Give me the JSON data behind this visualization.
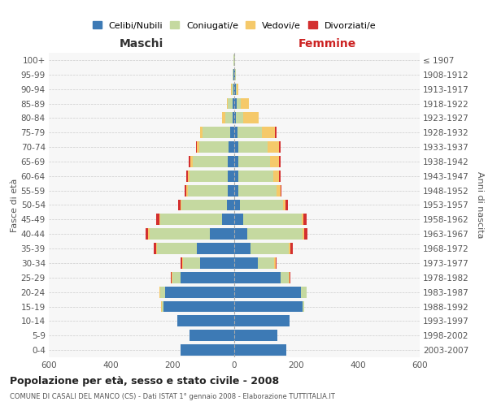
{
  "age_groups": [
    "0-4",
    "5-9",
    "10-14",
    "15-19",
    "20-24",
    "25-29",
    "30-34",
    "35-39",
    "40-44",
    "45-49",
    "50-54",
    "55-59",
    "60-64",
    "65-69",
    "70-74",
    "75-79",
    "80-84",
    "85-89",
    "90-94",
    "95-99",
    "100+"
  ],
  "birth_years": [
    "2003-2007",
    "1998-2002",
    "1993-1997",
    "1988-1992",
    "1983-1987",
    "1978-1982",
    "1973-1977",
    "1968-1972",
    "1963-1967",
    "1958-1962",
    "1953-1957",
    "1948-1952",
    "1943-1947",
    "1938-1942",
    "1933-1937",
    "1928-1932",
    "1923-1927",
    "1918-1922",
    "1913-1917",
    "1908-1912",
    "≤ 1907"
  ],
  "maschi": {
    "celibi": [
      175,
      145,
      185,
      230,
      225,
      175,
      110,
      120,
      80,
      40,
      25,
      20,
      20,
      20,
      18,
      12,
      5,
      5,
      3,
      2,
      1
    ],
    "coniugati": [
      0,
      0,
      0,
      5,
      15,
      25,
      55,
      130,
      195,
      200,
      145,
      130,
      125,
      115,
      95,
      90,
      25,
      15,
      5,
      2,
      1
    ],
    "vedovi": [
      0,
      0,
      0,
      2,
      2,
      2,
      3,
      3,
      3,
      3,
      3,
      4,
      6,
      8,
      8,
      8,
      10,
      5,
      2,
      1,
      0
    ],
    "divorziati": [
      0,
      0,
      0,
      0,
      0,
      3,
      5,
      8,
      10,
      10,
      8,
      6,
      4,
      4,
      2,
      0,
      0,
      0,
      0,
      0,
      0
    ]
  },
  "femmine": {
    "nubili": [
      168,
      140,
      180,
      220,
      215,
      150,
      75,
      52,
      42,
      28,
      18,
      12,
      12,
      12,
      12,
      10,
      5,
      8,
      4,
      2,
      1
    ],
    "coniugate": [
      0,
      0,
      0,
      5,
      18,
      25,
      55,
      125,
      180,
      190,
      140,
      125,
      115,
      105,
      95,
      80,
      25,
      12,
      5,
      2,
      1
    ],
    "vedove": [
      0,
      0,
      0,
      0,
      2,
      3,
      4,
      4,
      4,
      6,
      8,
      12,
      18,
      28,
      38,
      42,
      48,
      28,
      5,
      2,
      0
    ],
    "divorziate": [
      0,
      0,
      0,
      0,
      0,
      4,
      4,
      8,
      12,
      10,
      8,
      4,
      4,
      4,
      4,
      4,
      0,
      0,
      0,
      0,
      0
    ]
  },
  "colors": {
    "celibi_nubili": "#3d7ab5",
    "coniugati": "#c5d9a0",
    "vedovi": "#f5c96a",
    "divorziati": "#d32f2f"
  },
  "xlim": 600,
  "title": "Popolazione per età, sesso e stato civile - 2008",
  "subtitle": "COMUNE DI CASALI DEL MANCO (CS) - Dati ISTAT 1° gennaio 2008 - Elaborazione TUTTITALIA.IT",
  "maschi_label": "Maschi",
  "femmine_label": "Femmine",
  "ylabel_left": "Fasce di età",
  "ylabel_right": "Anni di nascita",
  "legend_labels": [
    "Celibi/Nubili",
    "Coniugati/e",
    "Vedovi/e",
    "Divorziati/e"
  ]
}
